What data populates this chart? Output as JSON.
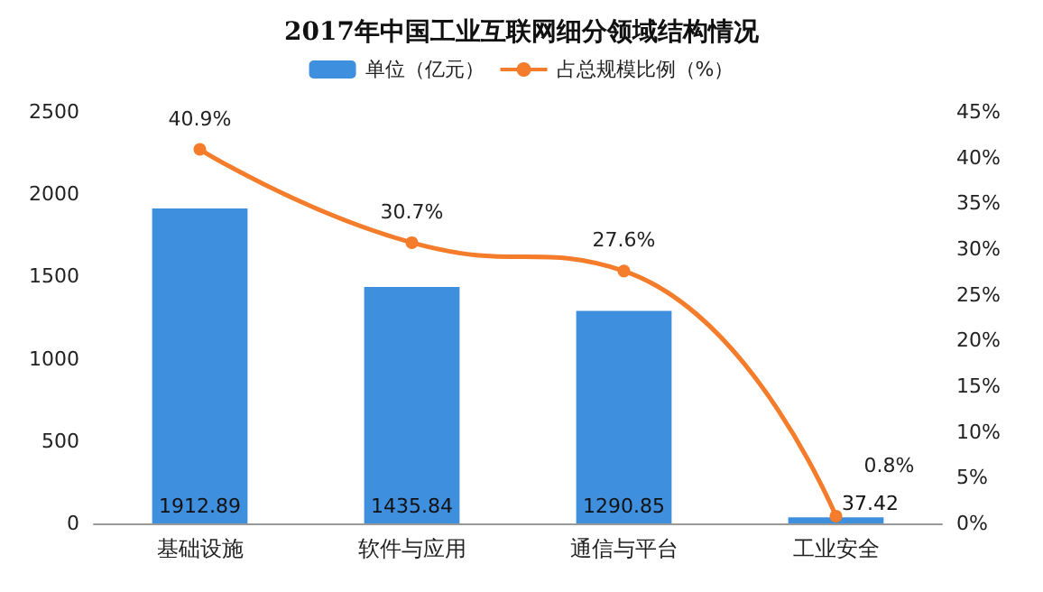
{
  "chart_data": {
    "type": "bar",
    "title": "2017年中国工业互联网细分领域结构情况",
    "categories": [
      "基础设施",
      "软件与应用",
      "通信与平台",
      "工业安全"
    ],
    "series": [
      {
        "name": "单位（亿元）",
        "color": "#3f8fdf",
        "values": [
          1912.89,
          1435.84,
          1290.85,
          37.42
        ],
        "value_labels": [
          "1912.89",
          "1435.84",
          "1290.85",
          "37.42"
        ]
      },
      {
        "name": "占总规模比例（%）",
        "type": "line",
        "axis": "y2",
        "color": "#f47c2a",
        "values": [
          40.9,
          30.7,
          27.6,
          0.8
        ],
        "value_labels": [
          "40.9%",
          "30.7%",
          "27.6%",
          "0.8%"
        ]
      }
    ],
    "ylim": [
      0,
      2500
    ],
    "yticks": [
      0,
      500,
      1000,
      1500,
      2000,
      2500
    ],
    "y2lim": [
      0,
      45
    ],
    "y2ticks": [
      {
        "value": 0,
        "label": "0%"
      },
      {
        "value": 5,
        "label": "5%"
      },
      {
        "value": 10,
        "label": "10%"
      },
      {
        "value": 15,
        "label": "15%"
      },
      {
        "value": 20,
        "label": "20%"
      },
      {
        "value": 25,
        "label": "25%"
      },
      {
        "value": 30,
        "label": "30%"
      },
      {
        "value": 35,
        "label": "35%"
      },
      {
        "value": 40,
        "label": "40%"
      },
      {
        "value": 45,
        "label": "45%"
      }
    ],
    "legend": "top",
    "marker": "circle"
  }
}
